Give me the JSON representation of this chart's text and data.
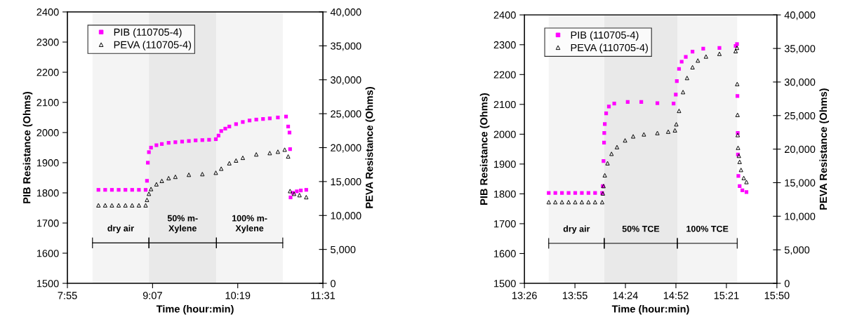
{
  "chart_data": [
    {
      "type": "scatter",
      "xlabel": "Time (hour:min)",
      "ylabel": "PIB Resistance (Ohms)",
      "y2label": "PEVA Resistance (Ohms)",
      "xlim": [
        7.9167,
        11.5167
      ],
      "xticks": [
        {
          "value": 7.9167,
          "label": "7:55"
        },
        {
          "value": 9.1167,
          "label": "9:07"
        },
        {
          "value": 10.3167,
          "label": "10:19"
        },
        {
          "value": 11.5167,
          "label": "11:31"
        }
      ],
      "ylim": [
        1500,
        2400
      ],
      "yticks": [
        1500,
        1600,
        1700,
        1800,
        1900,
        2000,
        2100,
        2200,
        2300,
        2400
      ],
      "y2lim": [
        0,
        40000
      ],
      "y2ticks": [
        0,
        {
          "value": 5000,
          "label": "5,000"
        },
        {
          "value": 10000,
          "label": "10,000"
        },
        {
          "value": 15000,
          "label": "15,000"
        },
        {
          "value": 20000,
          "label": "20,000"
        },
        {
          "value": 25000,
          "label": "25,000"
        },
        {
          "value": 30000,
          "label": "30,000"
        },
        {
          "value": 35000,
          "label": "35,000"
        },
        {
          "value": 40000,
          "label": "40,000"
        }
      ],
      "grid": false,
      "legend": "top left",
      "bands": [
        {
          "axis": "x",
          "from": 8.27,
          "to": 9.065,
          "label": "dry air",
          "color": "#f4f4f4"
        },
        {
          "axis": "x",
          "from": 9.065,
          "to": 10.016,
          "label": "50% m-\nXylene",
          "color": "#e9e9e9"
        },
        {
          "axis": "x",
          "from": 10.016,
          "to": 10.951,
          "label": "100% m-\nXylene",
          "color": "#f4f4f4"
        }
      ],
      "series": [
        {
          "name": "PIB (110705-4)",
          "color": "#ff00ff",
          "marker": "square",
          "x": [
            8.354,
            8.449,
            8.544,
            8.639,
            8.734,
            8.829,
            8.924,
            9.019,
            9.038,
            9.05,
            9.065,
            9.095,
            9.171,
            9.247,
            9.343,
            9.438,
            9.533,
            9.628,
            9.723,
            9.818,
            9.913,
            10.008,
            10.046,
            10.084,
            10.141,
            10.198,
            10.293,
            10.388,
            10.483,
            10.578,
            10.673,
            10.768,
            10.882,
            10.997,
            11.027,
            11.046,
            11.054,
            11.061,
            11.092,
            11.149,
            11.206,
            11.282
          ],
          "values": [
            1810,
            1810,
            1810,
            1810,
            1810,
            1810,
            1810,
            1810,
            1840,
            1900,
            1935,
            1950,
            1958,
            1962,
            1966,
            1968,
            1970,
            1972,
            1974,
            1975,
            1976,
            1978,
            1990,
            2005,
            2013,
            2020,
            2028,
            2035,
            2040,
            2043,
            2045,
            2047,
            2050,
            2053,
            2020,
            2000,
            1945,
            1785,
            1800,
            1805,
            1808,
            1810
          ]
        },
        {
          "name": "PEVA (110705-4)",
          "color": "#000000",
          "marker": "triangle",
          "axis": "y2",
          "x": [
            8.354,
            8.449,
            8.544,
            8.639,
            8.734,
            8.829,
            8.924,
            9.019,
            9.038,
            9.065,
            9.095,
            9.171,
            9.247,
            9.343,
            9.438,
            9.628,
            9.818,
            10.008,
            10.084,
            10.198,
            10.293,
            10.388,
            10.578,
            10.768,
            10.882,
            10.978,
            11.027,
            11.054,
            11.111,
            11.187,
            11.282
          ],
          "values": [
            11500,
            11500,
            11500,
            11500,
            11500,
            11500,
            11500,
            11500,
            12300,
            13200,
            13900,
            14600,
            15100,
            15500,
            15700,
            16000,
            16100,
            16300,
            16900,
            17700,
            18100,
            18500,
            19000,
            19200,
            19400,
            19700,
            18700,
            13600,
            13200,
            13000,
            12700
          ]
        }
      ]
    },
    {
      "type": "scatter",
      "xlabel": "Time (hour:min)",
      "ylabel": "PIB Resistance (Ohms)",
      "y2label": "PEVA Resistance (Ohms)",
      "xlim": [
        13.4333,
        15.8333
      ],
      "xticks": [
        {
          "value": 13.4333,
          "label": "13:26"
        },
        {
          "value": 13.9133,
          "label": "13:55"
        },
        {
          "value": 14.3933,
          "label": "14:24"
        },
        {
          "value": 14.8733,
          "label": "14:52"
        },
        {
          "value": 15.3533,
          "label": "15:21"
        },
        {
          "value": 15.8333,
          "label": "15:50"
        }
      ],
      "ylim": [
        1500,
        2400
      ],
      "yticks": [
        1500,
        1600,
        1700,
        1800,
        1900,
        2000,
        2100,
        2200,
        2300,
        2400
      ],
      "y2lim": [
        0,
        40000
      ],
      "y2ticks": [
        0,
        {
          "value": 5000,
          "label": "5,000"
        },
        {
          "value": 10000,
          "label": "10,000"
        },
        {
          "value": 15000,
          "label": "15,000"
        },
        {
          "value": 20000,
          "label": "20,000"
        },
        {
          "value": 25000,
          "label": "25,000"
        },
        {
          "value": 30000,
          "label": "30,000"
        },
        {
          "value": 35000,
          "label": "35,000"
        },
        {
          "value": 40000,
          "label": "40,000"
        }
      ],
      "grid": false,
      "legend": "top left",
      "bands": [
        {
          "axis": "x",
          "from": 13.664,
          "to": 14.192,
          "label": "dry air",
          "color": "#f4f4f4"
        },
        {
          "axis": "x",
          "from": 14.192,
          "to": 14.887,
          "label": "50% TCE",
          "color": "#e9e9e9"
        },
        {
          "axis": "x",
          "from": 14.887,
          "to": 15.456,
          "label": "100% TCE",
          "color": "#f4f4f4"
        }
      ],
      "series": [
        {
          "name": "PIB (110705-4)",
          "color": "#ff00ff",
          "marker": "square",
          "x": [
            13.664,
            13.727,
            13.79,
            13.853,
            13.916,
            13.979,
            14.042,
            14.105,
            14.172,
            14.178,
            14.185,
            14.19,
            14.192,
            14.197,
            14.21,
            14.236,
            14.287,
            14.415,
            14.544,
            14.697,
            14.851,
            14.872,
            14.882,
            14.903,
            14.928,
            14.967,
            15.031,
            15.133,
            15.287,
            15.441,
            15.454,
            15.458,
            15.461,
            15.463,
            15.467,
            15.479,
            15.505,
            15.544
          ],
          "values": [
            1803,
            1803,
            1803,
            1803,
            1803,
            1803,
            1803,
            1803,
            1803,
            1826,
            1910,
            1972,
            2004,
            2034,
            2070,
            2093,
            2103,
            2108,
            2108,
            2104,
            2103,
            2133,
            2178,
            2219,
            2243,
            2259,
            2277,
            2287,
            2289,
            2296,
            2302,
            2128,
            2004,
            1932,
            1860,
            1826,
            1812,
            1806
          ]
        },
        {
          "name": "PEVA (110705-4)",
          "color": "#000000",
          "marker": "triangle",
          "axis": "y2",
          "x": [
            13.664,
            13.727,
            13.79,
            13.853,
            13.916,
            13.979,
            14.042,
            14.105,
            14.172,
            14.179,
            14.185,
            14.197,
            14.223,
            14.261,
            14.313,
            14.39,
            14.467,
            14.569,
            14.697,
            14.8,
            14.864,
            14.877,
            14.903,
            14.941,
            14.979,
            15.031,
            15.082,
            15.159,
            15.287,
            15.441,
            15.454,
            15.456,
            15.459,
            15.461,
            15.464,
            15.472,
            15.479,
            15.492,
            15.518,
            15.544
          ],
          "values": [
            12100,
            12100,
            12100,
            12100,
            12100,
            12100,
            12100,
            12100,
            12100,
            13400,
            14500,
            16100,
            17900,
            19300,
            20300,
            21300,
            21900,
            22200,
            22400,
            22600,
            22800,
            23700,
            25700,
            28500,
            30600,
            32200,
            33200,
            33800,
            34200,
            34600,
            35100,
            29700,
            25100,
            22100,
            20200,
            19000,
            18100,
            16900,
            15700,
            15100
          ]
        }
      ]
    }
  ]
}
